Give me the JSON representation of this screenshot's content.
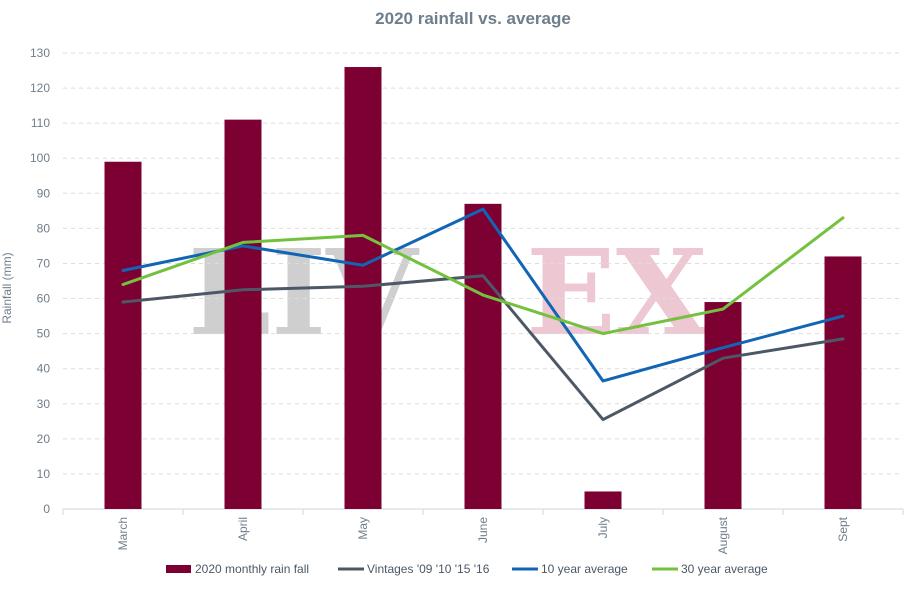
{
  "chart_data": {
    "type": "bar",
    "title": "2020 rainfall vs. average",
    "xlabel": "",
    "ylabel": "Rainfall (mm)",
    "ylim": [
      0,
      130
    ],
    "yticks": [
      0,
      10,
      20,
      30,
      40,
      50,
      60,
      70,
      80,
      90,
      100,
      110,
      120,
      130
    ],
    "grid": true,
    "legend_position": "bottom",
    "categories": [
      "March",
      "April",
      "May",
      "June",
      "July",
      "August",
      "Sept"
    ],
    "bars": {
      "name": "2020 monthly rain fall",
      "color": "#7d0033",
      "values": [
        99,
        111,
        126,
        87,
        5,
        59,
        72
      ]
    },
    "series": [
      {
        "name": "Vintages '09 '10 '15 '16",
        "type": "line",
        "color": "#4d5866",
        "values": [
          59,
          62.5,
          63.5,
          66.5,
          25.5,
          43,
          48.5
        ]
      },
      {
        "name": "10 year average",
        "type": "line",
        "color": "#1265b5",
        "values": [
          68,
          75,
          69.5,
          85.5,
          36.5,
          46,
          55
        ]
      },
      {
        "name": "30 year average",
        "type": "line",
        "color": "#74c13f",
        "values": [
          64,
          76,
          78,
          61,
          50,
          57,
          83
        ]
      }
    ],
    "watermark": {
      "left": "LIV",
      "right": "EX",
      "left_color": "#cfcfcf",
      "right_color": "#edc7d1"
    }
  }
}
